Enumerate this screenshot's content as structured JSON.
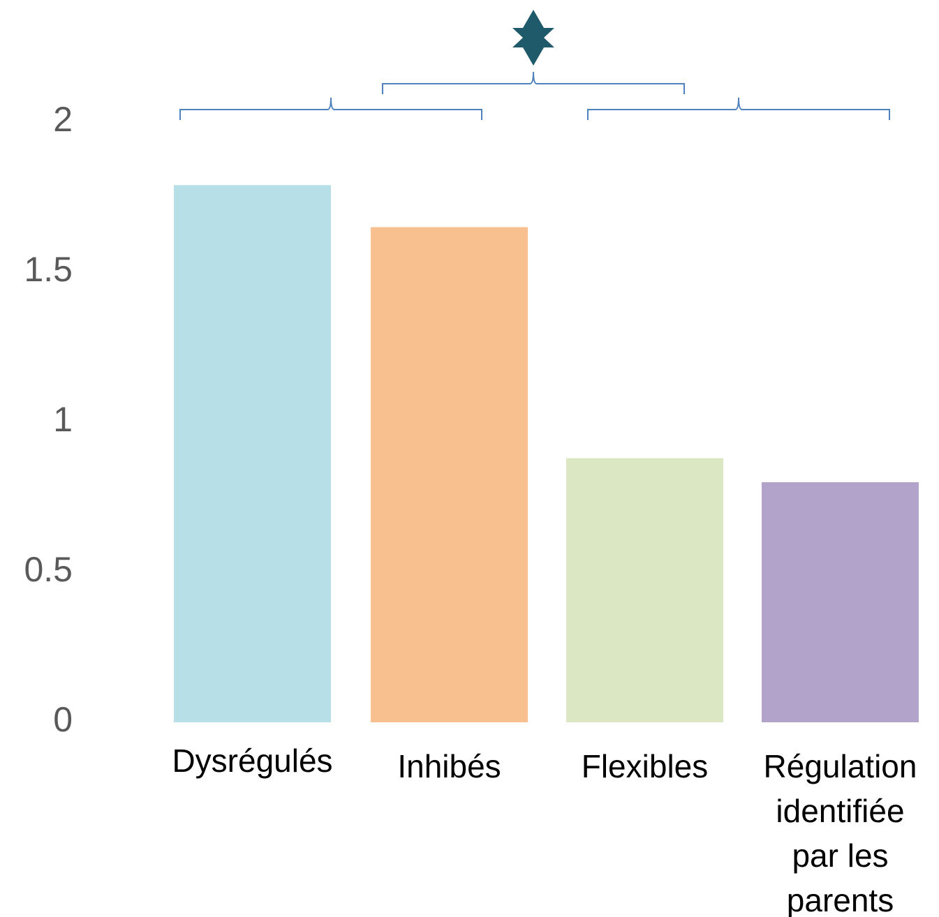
{
  "chart_data": {
    "type": "bar",
    "categories": [
      "Dysrégulés",
      "Inhibés",
      "Flexibles",
      "Régulation identifiée par les parents"
    ],
    "values": [
      1.79,
      1.65,
      0.88,
      0.8
    ],
    "colors": [
      "#b7dfe8",
      "#f8c08f",
      "#dbe6c3",
      "#b1a3c9"
    ],
    "ylim": [
      0,
      2
    ],
    "yticks": [
      0,
      0.5,
      1,
      1.5,
      2
    ],
    "grid": false
  }
}
